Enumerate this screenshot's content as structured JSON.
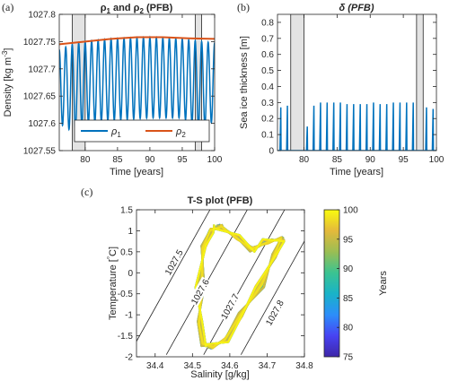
{
  "chart_data": [
    {
      "panel_label": "(a)",
      "type": "line",
      "title_parts": [
        "ρ",
        "1",
        " and ρ",
        "2",
        " (PFB)"
      ],
      "xlabel": "Time [years]",
      "ylabel_parts": [
        "Density [kg m",
        "-3",
        "]"
      ],
      "xlim": [
        76,
        100
      ],
      "ylim": [
        1027.55,
        1027.8
      ],
      "xticks": [
        80,
        85,
        90,
        95,
        100
      ],
      "yticks": [
        1027.55,
        1027.6,
        1027.65,
        1027.7,
        1027.75,
        1027.8
      ],
      "ytick_labels": [
        "1027.55",
        "1027.6",
        "1027.65",
        "1027.7",
        "1027.75",
        "1027.8"
      ],
      "shaded_spans": [
        [
          78,
          80
        ],
        [
          97,
          98
        ]
      ],
      "legend_position": "lower center",
      "series": [
        {
          "name_parts": [
            "ρ",
            "1"
          ],
          "color": "#0072BD",
          "period_years": 1,
          "x_start": 76,
          "peak_years": [
            76,
            78,
            80,
            84,
            90,
            95,
            98,
            100
          ],
          "peak_values": [
            1027.735,
            1027.745,
            1027.75,
            1027.755,
            1027.758,
            1027.755,
            1027.75,
            1027.748
          ],
          "trough_years": [
            76,
            78,
            80,
            84,
            90,
            95,
            98,
            100
          ],
          "trough_values": [
            1027.6,
            1027.585,
            1027.6,
            1027.605,
            1027.61,
            1027.61,
            1027.59,
            1027.605
          ]
        },
        {
          "name_parts": [
            "ρ",
            "2"
          ],
          "color": "#D95319",
          "x": [
            76,
            80,
            84,
            88,
            92,
            96,
            100
          ],
          "values": [
            1027.745,
            1027.75,
            1027.755,
            1027.758,
            1027.758,
            1027.756,
            1027.755
          ]
        }
      ]
    },
    {
      "panel_label": "(b)",
      "type": "line",
      "title": "δ (PFB)",
      "xlabel": "Time [years]",
      "ylabel": "Sea ice thickness [m]",
      "xlim": [
        76,
        100
      ],
      "ylim": [
        0,
        0.85
      ],
      "xticks": [
        80,
        85,
        90,
        95,
        100
      ],
      "yticks": [
        0,
        0.1,
        0.2,
        0.3,
        0.4,
        0.5,
        0.6,
        0.7,
        0.8
      ],
      "ytick_labels": [
        "0",
        "0.1",
        "0.2",
        "0.3",
        "0.4",
        "0.5",
        "0.6",
        "0.7",
        "0.8"
      ],
      "shaded_spans": [
        [
          78,
          80
        ],
        [
          97,
          98
        ]
      ],
      "series": [
        {
          "color": "#0072BD",
          "ice_free": 0,
          "spikes": [
            {
              "x": 76.5,
              "peak": 0.27
            },
            {
              "x": 77.5,
              "peak": 0.28
            },
            {
              "x": 80.5,
              "peak": 0.15
            },
            {
              "x": 81.5,
              "peak": 0.28
            },
            {
              "x": 82.5,
              "peak": 0.3
            },
            {
              "x": 83.5,
              "peak": 0.3
            },
            {
              "x": 84.5,
              "peak": 0.3
            },
            {
              "x": 85.5,
              "peak": 0.3
            },
            {
              "x": 86.5,
              "peak": 0.29
            },
            {
              "x": 87.5,
              "peak": 0.29
            },
            {
              "x": 88.5,
              "peak": 0.29
            },
            {
              "x": 89.5,
              "peak": 0.29
            },
            {
              "x": 90.5,
              "peak": 0.3
            },
            {
              "x": 91.5,
              "peak": 0.29
            },
            {
              "x": 92.5,
              "peak": 0.29
            },
            {
              "x": 93.5,
              "peak": 0.3
            },
            {
              "x": 94.5,
              "peak": 0.3
            },
            {
              "x": 95.5,
              "peak": 0.3
            },
            {
              "x": 96.5,
              "peak": 0.3
            },
            {
              "x": 98.5,
              "peak": 0.27
            },
            {
              "x": 99.5,
              "peak": 0.26
            }
          ]
        }
      ]
    },
    {
      "panel_label": "(c)",
      "type": "line",
      "title": "T-S plot (PFB)",
      "xlabel": "Salinity [g/kg]",
      "ylabel_parts": [
        "Temperature [",
        "°",
        "C]"
      ],
      "xlim": [
        34.35,
        34.8
      ],
      "ylim": [
        -2,
        1.5
      ],
      "xticks": [
        34.4,
        34.5,
        34.6,
        34.7,
        34.8
      ],
      "yticks": [
        -2,
        -1.5,
        -1,
        -0.5,
        0,
        0.5,
        1,
        1.5
      ],
      "ytick_labels": [
        "-2",
        "-1.5",
        "-1",
        "-0.5",
        "0",
        "0.5",
        "1",
        "1.5"
      ],
      "isopycnals": [
        {
          "label": "1027.5",
          "points": [
            [
              34.33,
              -1.95
            ],
            [
              34.55,
              1.55
            ]
          ],
          "label_at": [
            34.45,
            0.25
          ]
        },
        {
          "label": "1027.6",
          "points": [
            [
              34.43,
              -1.95
            ],
            [
              34.65,
              1.55
            ]
          ],
          "label_at": [
            34.52,
            -0.45
          ]
        },
        {
          "label": "1027.7",
          "points": [
            [
              34.53,
              -1.95
            ],
            [
              34.75,
              1.55
            ]
          ],
          "label_at": [
            34.6,
            -0.8
          ]
        },
        {
          "label": "1027.8",
          "points": [
            [
              34.63,
              -1.95
            ],
            [
              34.85,
              1.55
            ]
          ],
          "label_at": [
            34.72,
            -0.95
          ]
        }
      ],
      "trajectory_years": [
        75,
        100
      ],
      "trajectory": [
        [
          34.57,
          1.1
        ],
        [
          34.62,
          0.85
        ],
        [
          34.66,
          0.55
        ],
        [
          34.7,
          0.75
        ],
        [
          34.74,
          0.8
        ],
        [
          34.72,
          0.4
        ],
        [
          34.68,
          -0.3
        ],
        [
          34.63,
          -1.0
        ],
        [
          34.59,
          -1.6
        ],
        [
          34.55,
          -1.75
        ],
        [
          34.53,
          -1.7
        ],
        [
          34.52,
          -1.2
        ],
        [
          34.52,
          -0.3
        ],
        [
          34.53,
          0.6
        ],
        [
          34.55,
          1.0
        ],
        [
          34.57,
          1.1
        ]
      ],
      "colorbar": {
        "label": "Years",
        "range": [
          75,
          100
        ],
        "ticks": [
          75,
          80,
          85,
          90,
          95,
          100
        ],
        "colors": [
          "#3E26A8",
          "#4743F3",
          "#2C8EFA",
          "#19B3C8",
          "#3BC391",
          "#9BBE53",
          "#E4B93B",
          "#F9FB0F"
        ]
      }
    }
  ]
}
